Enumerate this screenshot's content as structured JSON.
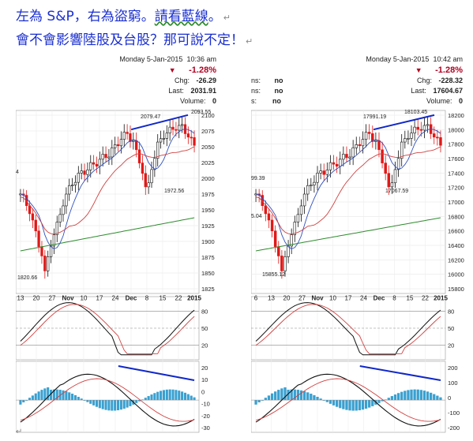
{
  "caption": {
    "line1_a": "左為 S&P，右為盜窮。",
    "line1_b": "請看藍線",
    "line1_c": "。",
    "line2": "會不會影響陸股及台股？那可說不定！"
  },
  "left_chart": {
    "date": "Monday  5-Jan-2015",
    "time": "10:36 am",
    "change_pct": "-1.28%",
    "chg_label": "Chg:",
    "chg_value": "-26.29",
    "last_label": "Last:",
    "last_value": "2031.91",
    "volume_label": "Volume:",
    "volume_value": "0",
    "annotations": [
      "2079.47",
      "2093.55",
      "1972.56",
      "1820.66"
    ],
    "price_ticks": [
      "2100",
      "2075",
      "2050",
      "2025",
      "2000",
      "1975",
      "1950",
      "1925",
      "1900",
      "1875",
      "1850",
      "1825"
    ],
    "x_ticks": [
      "13",
      "20",
      "27",
      "Nov",
      "10",
      "17",
      "24",
      "Dec",
      "8",
      "15",
      "22",
      "2015"
    ],
    "stoch_ticks": [
      "80",
      "50",
      "20"
    ],
    "macd_ticks": [
      "20",
      "10",
      "0",
      "-10",
      "-20",
      "-30"
    ],
    "edge_label": "4"
  },
  "right_chart": {
    "date": "Monday  5-Jan-2015",
    "time": "10:42 am",
    "change_pct": "-1.28%",
    "chg_label": "Chg:",
    "chg_value": "-228.32",
    "last_label": "Last:",
    "last_value": "17604.67",
    "volume_label": "Volume:",
    "volume_value": "0",
    "left_labels": [
      "ns:",
      "ns:",
      "s:"
    ],
    "left_values": [
      "no",
      "no",
      "no"
    ],
    "annotations": [
      "17991.19",
      "18103.45",
      "17067.59",
      "15855.12",
      "99.39",
      "5.04"
    ],
    "price_ticks": [
      "18200",
      "18000",
      "17800",
      "17600",
      "17400",
      "17200",
      "17000",
      "16800",
      "16600",
      "16400",
      "16200",
      "16000",
      "15800"
    ],
    "x_ticks": [
      "6",
      "13",
      "20",
      "27",
      "Nov",
      "10",
      "17",
      "24",
      "Dec",
      "8",
      "15",
      "22",
      "2015"
    ],
    "stoch_ticks": [
      "80",
      "50",
      "20"
    ],
    "macd_ticks": [
      "200",
      "100",
      "0",
      "-100",
      "-200"
    ]
  },
  "colors": {
    "caption": "#1a2fd0",
    "blue_trend": "#1028c8",
    "down": "#e01818",
    "up_candle": "#ffffff",
    "ma_green": "#2e8b2e",
    "ma_red": "#d04040",
    "ma_blue": "#3050c0",
    "hist": "#3aa0d0"
  }
}
